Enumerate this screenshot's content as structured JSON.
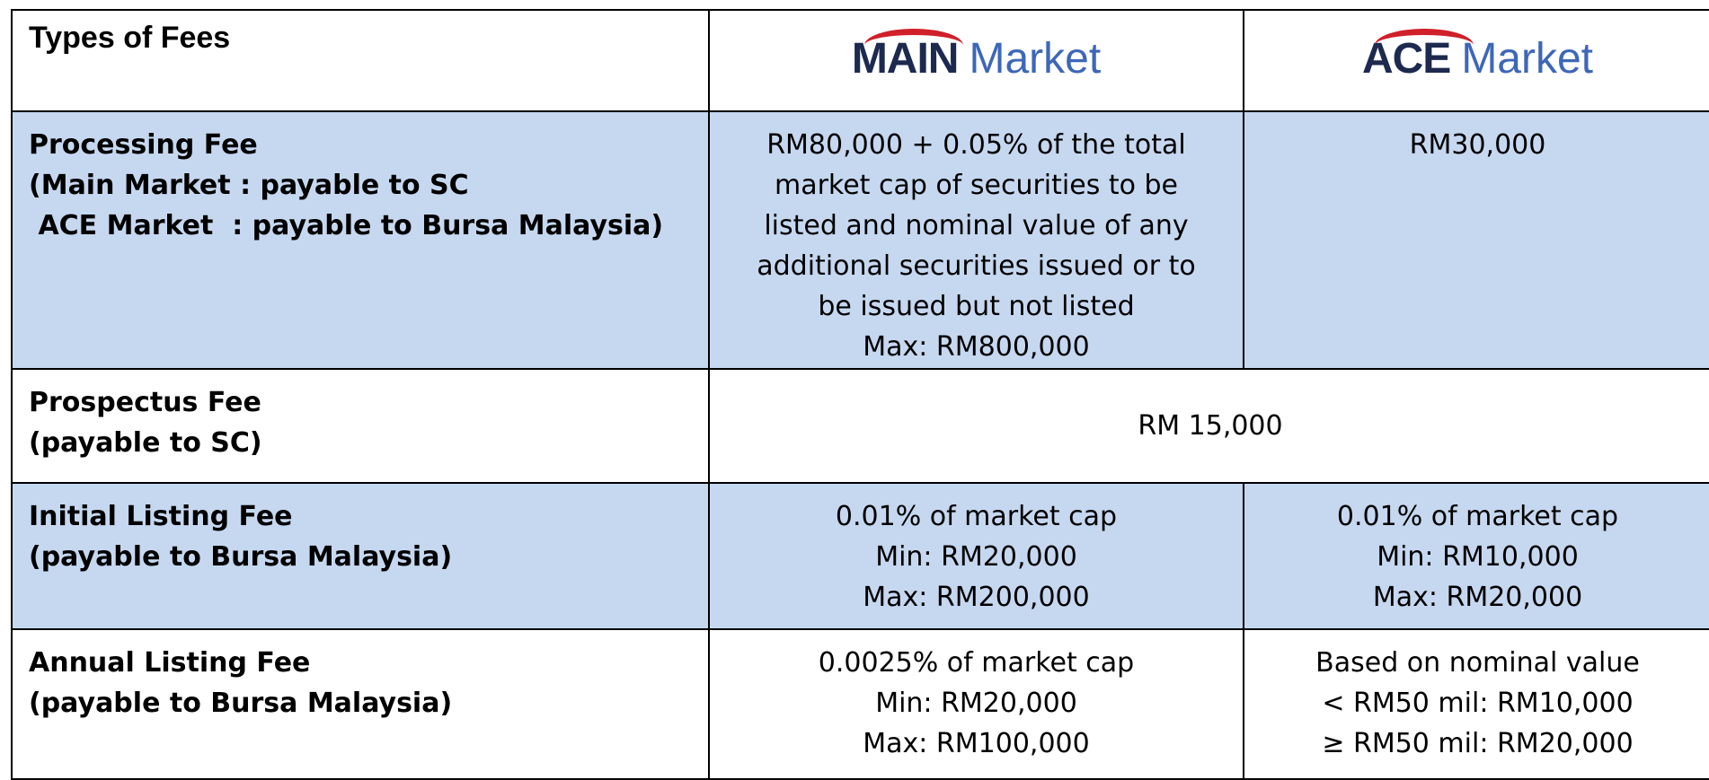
{
  "header": {
    "title": "Types of Fees",
    "columns": [
      {
        "logo": "MAIN",
        "word": "Market"
      },
      {
        "logo": "ACE",
        "word": "Market"
      }
    ]
  },
  "rows": [
    {
      "label": [
        "Processing Fee",
        "(Main Market : payable to SC",
        " ACE Market  : payable to Bursa Malaysia)"
      ],
      "main": [
        "RM80,000 + 0.05% of the total",
        "market cap of securities to be",
        "listed and nominal value of any",
        "additional securities issued or to",
        "be issued but not listed",
        "Max: RM800,000"
      ],
      "ace": [
        "RM30,000"
      ]
    },
    {
      "label": [
        "Prospectus Fee",
        "(payable to SC)"
      ],
      "both": [
        "RM 15,000"
      ]
    },
    {
      "label": [
        "Initial Listing Fee",
        "(payable to Bursa Malaysia)"
      ],
      "main": [
        "0.01% of market cap",
        "Min: RM20,000",
        "Max: RM200,000"
      ],
      "ace": [
        "0.01% of market cap",
        "Min: RM10,000",
        "Max: RM20,000"
      ]
    },
    {
      "label": [
        "Annual Listing Fee",
        "(payable to Bursa Malaysia)"
      ],
      "main": [
        "0.0025% of market cap",
        "Min: RM20,000",
        "Max: RM100,000"
      ],
      "ace": [
        "Based on nominal value",
        "< RM50 mil: RM10,000",
        "≥ RM50 mil: RM20,000"
      ]
    }
  ]
}
